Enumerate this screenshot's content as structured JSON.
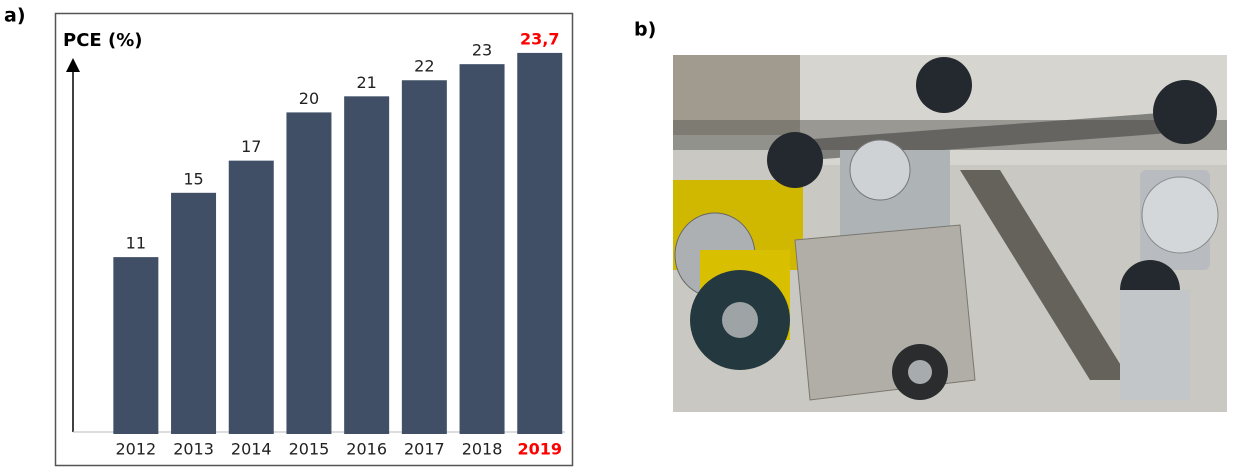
{
  "chart_data": {
    "type": "bar",
    "panel_label": "a)",
    "y_label": "PCE (%)",
    "categories": [
      "2012",
      "2013",
      "2014",
      "2015",
      "2016",
      "2017",
      "2018",
      "2019"
    ],
    "values": [
      11,
      15,
      17,
      20,
      21,
      22,
      23,
      23.7
    ],
    "value_labels": [
      "11",
      "15",
      "17",
      "20",
      "21",
      "22",
      "23",
      "23,7"
    ],
    "color": "#414f66",
    "highlight_category": "2019",
    "highlight_color": "#ff0000",
    "ylim": [
      0,
      25
    ]
  },
  "photo": {
    "panel_label": "b)"
  }
}
